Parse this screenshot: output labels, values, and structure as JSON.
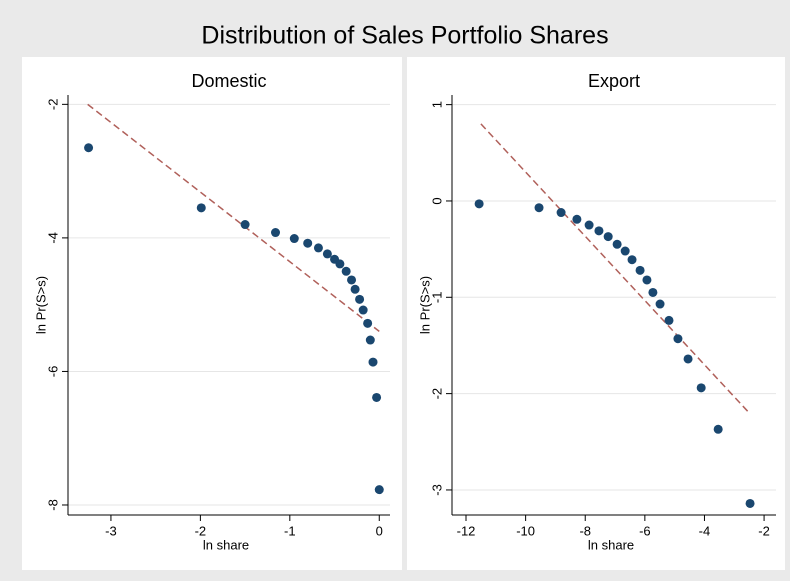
{
  "title": "Distribution of Sales Portfolio Shares",
  "chart_data": [
    {
      "type": "scatter",
      "title": "Domestic",
      "x_label": "ln share",
      "y_label": "ln Pr(S>s)",
      "xlim": [
        -3.48,
        0.12
      ],
      "ylim": [
        -8.15,
        -1.86
      ],
      "xticks": [
        -3,
        -2,
        -1,
        0
      ],
      "yticks": [
        -2,
        -4,
        -6,
        -8
      ],
      "grid": true,
      "points": {
        "color": "#1a476f",
        "x": [
          -3.25,
          -1.99,
          -1.5,
          -1.16,
          -0.95,
          -0.8,
          -0.68,
          -0.58,
          -0.5,
          -0.44,
          -0.37,
          -0.31,
          -0.27,
          -0.22,
          -0.18,
          -0.13,
          -0.1,
          -0.07,
          -0.03,
          0.0
        ],
        "y": [
          -2.65,
          -3.55,
          -3.8,
          -3.92,
          -4.01,
          -4.08,
          -4.15,
          -4.24,
          -4.32,
          -4.39,
          -4.5,
          -4.63,
          -4.77,
          -4.92,
          -5.08,
          -5.28,
          -5.53,
          -5.86,
          -6.39,
          -7.77
        ]
      },
      "fit": {
        "color": "#b0605a",
        "x": [
          -3.26,
          0.0
        ],
        "y": [
          -2.0,
          -5.4
        ]
      }
    },
    {
      "type": "scatter",
      "title": "Export",
      "x_label": "ln share",
      "y_label": "ln Pr(S>s)",
      "xlim": [
        -12.47,
        -1.6
      ],
      "ylim": [
        -3.26,
        1.1
      ],
      "xticks": [
        -12,
        -10,
        -8,
        -6,
        -4,
        -2
      ],
      "yticks": [
        1,
        0,
        -1,
        -2,
        -3
      ],
      "grid": true,
      "points": {
        "color": "#1a476f",
        "x": [
          -11.56,
          -9.55,
          -8.81,
          -8.28,
          -7.87,
          -7.54,
          -7.23,
          -6.93,
          -6.66,
          -6.43,
          -6.16,
          -5.93,
          -5.73,
          -5.49,
          -5.19,
          -4.89,
          -4.55,
          -4.11,
          -3.54,
          -2.47
        ],
        "y": [
          -0.03,
          -0.07,
          -0.12,
          -0.19,
          -0.25,
          -0.31,
          -0.37,
          -0.45,
          -0.52,
          -0.61,
          -0.72,
          -0.82,
          -0.95,
          -1.07,
          -1.24,
          -1.43,
          -1.64,
          -1.94,
          -2.37,
          -3.14
        ]
      },
      "fit": {
        "color": "#b0605a",
        "x": [
          -11.5,
          -2.47
        ],
        "y": [
          0.8,
          -2.21
        ]
      }
    }
  ]
}
